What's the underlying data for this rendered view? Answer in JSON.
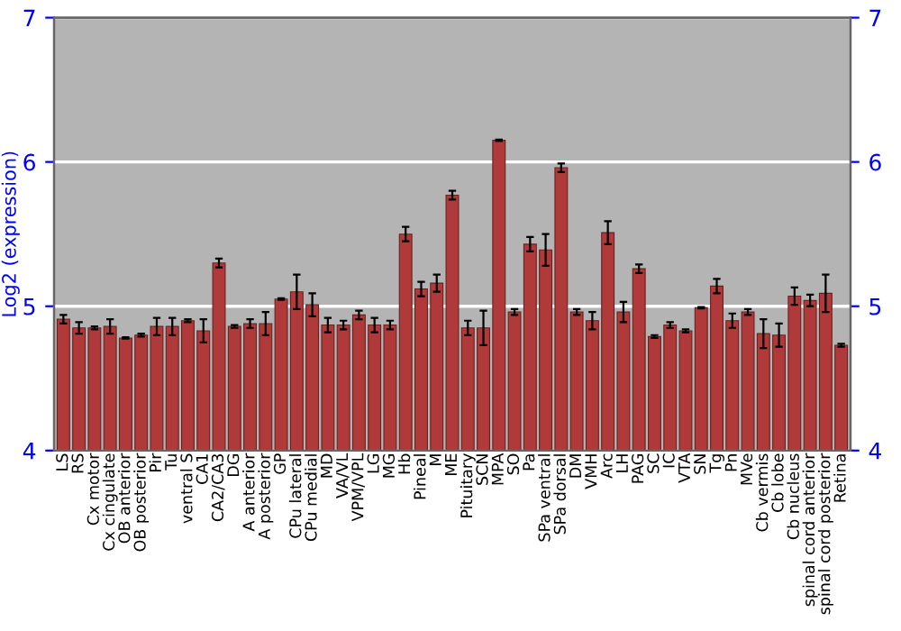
{
  "chart_data": {
    "type": "bar",
    "ylabel": "Log2 (expression)",
    "categories": [
      "LS",
      "RS",
      "Cx motor",
      "Cx cingulate",
      "OB anterior",
      "OB posterior",
      "Pir",
      "Tu",
      "ventral S",
      "CA1",
      "CA2/CA3",
      "DG",
      "A anterior",
      "A posterior",
      "GP",
      "CPu lateral",
      "CPu medial",
      "MD",
      "VA/VL",
      "VPM/VPL",
      "LG",
      "MG",
      "Hb",
      "Pineal",
      "M",
      "ME",
      "Pituitary",
      "SCN",
      "MPA",
      "SO",
      "Pa",
      "SPa ventral",
      "SPa dorsal",
      "DM",
      "VMH",
      "Arc",
      "LH",
      "PAG",
      "SC",
      "IC",
      "VTA",
      "SN",
      "Tg",
      "Pn",
      "MVe",
      "Cb vermis",
      "Cb lobe",
      "Cb nucleus",
      "spinal cord anterior",
      "spinal cord posterior",
      "Retina"
    ],
    "values": [
      4.91,
      4.85,
      4.85,
      4.86,
      4.78,
      4.8,
      4.86,
      4.86,
      4.9,
      4.83,
      5.3,
      4.86,
      4.88,
      4.88,
      5.05,
      5.1,
      5.01,
      4.87,
      4.87,
      4.94,
      4.87,
      4.87,
      5.5,
      5.12,
      5.16,
      5.77,
      4.85,
      4.85,
      6.15,
      4.96,
      5.43,
      5.39,
      5.96,
      4.96,
      4.9,
      5.51,
      4.96,
      5.26,
      4.79,
      4.87,
      4.83,
      4.99,
      5.14,
      4.9,
      4.96,
      4.81,
      4.8,
      5.07,
      5.04,
      5.09,
      4.73
    ],
    "errors": [
      0.03,
      0.04,
      0.01,
      0.05,
      0.005,
      0.01,
      0.06,
      0.06,
      0.01,
      0.08,
      0.03,
      0.01,
      0.03,
      0.08,
      0.005,
      0.12,
      0.08,
      0.05,
      0.03,
      0.03,
      0.05,
      0.03,
      0.05,
      0.05,
      0.06,
      0.03,
      0.05,
      0.12,
      0.005,
      0.02,
      0.05,
      0.11,
      0.03,
      0.02,
      0.06,
      0.08,
      0.07,
      0.03,
      0.01,
      0.02,
      0.01,
      0.005,
      0.05,
      0.05,
      0.02,
      0.1,
      0.08,
      0.06,
      0.04,
      0.13,
      0.01
    ],
    "color": "#b03a3a",
    "ylim": [
      4,
      7
    ],
    "yticks": [
      4,
      5,
      6,
      7
    ],
    "y2lim": [
      4,
      7
    ],
    "y2ticks": [
      4,
      5,
      6,
      7
    ],
    "grid": "y"
  }
}
